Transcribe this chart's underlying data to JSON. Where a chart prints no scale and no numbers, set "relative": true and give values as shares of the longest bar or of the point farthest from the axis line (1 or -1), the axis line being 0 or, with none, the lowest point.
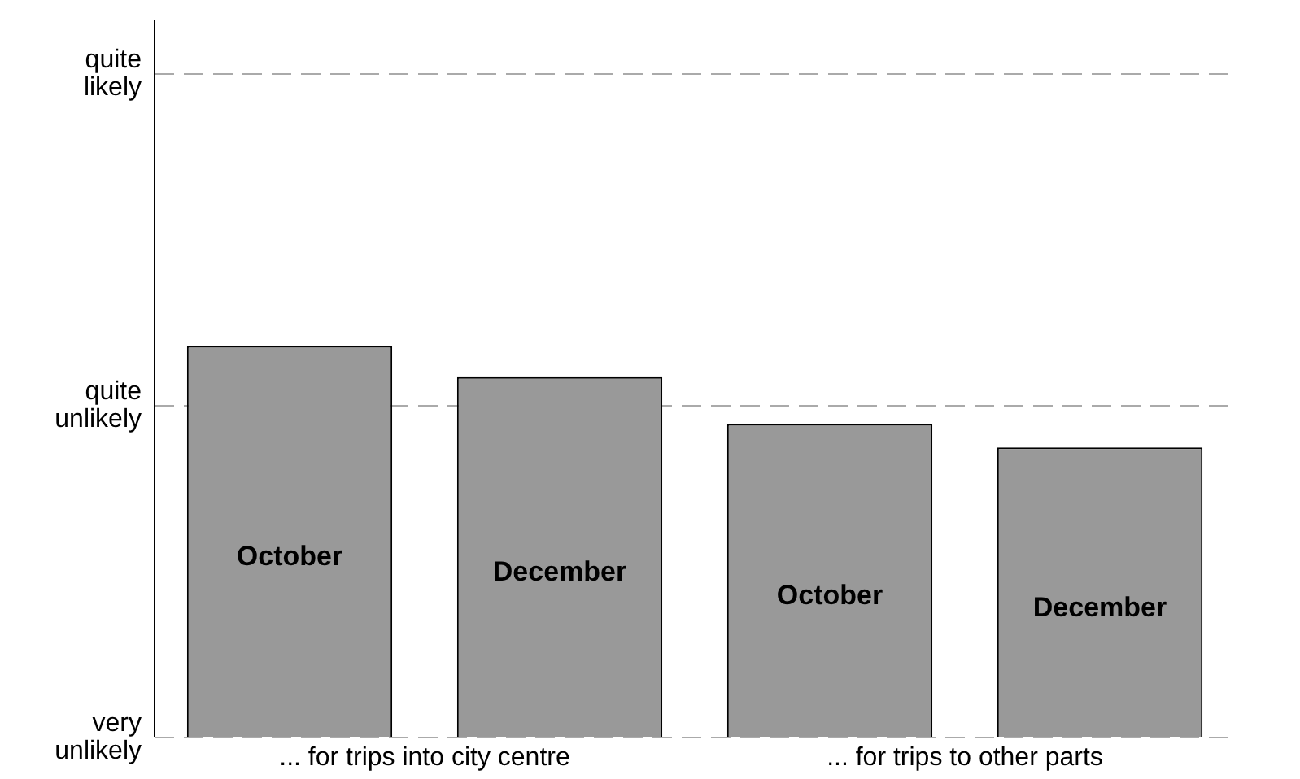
{
  "chart_data": {
    "type": "bar",
    "relative": true,
    "categories": [
      "October",
      "December",
      "October",
      "December"
    ],
    "values": [
      1,
      0.92,
      0.8,
      0.74
    ],
    "color": "#999999",
    "ref_lines": [
      {
        "axis": "y",
        "value": 0,
        "label": "very unlikely",
        "color": "#aaaaaa",
        "line_style": "dashed"
      },
      {
        "axis": "y",
        "value": 0.85,
        "label": "quite unlikely",
        "color": "#aaaaaa",
        "line_style": "dashed"
      },
      {
        "axis": "y",
        "value": 1.7,
        "label": "quite likely",
        "color": "#aaaaaa",
        "line_style": "dashed"
      }
    ],
    "legend": false,
    "annotations": [
      "... for trips into city centre",
      "... for trips to other parts"
    ]
  }
}
